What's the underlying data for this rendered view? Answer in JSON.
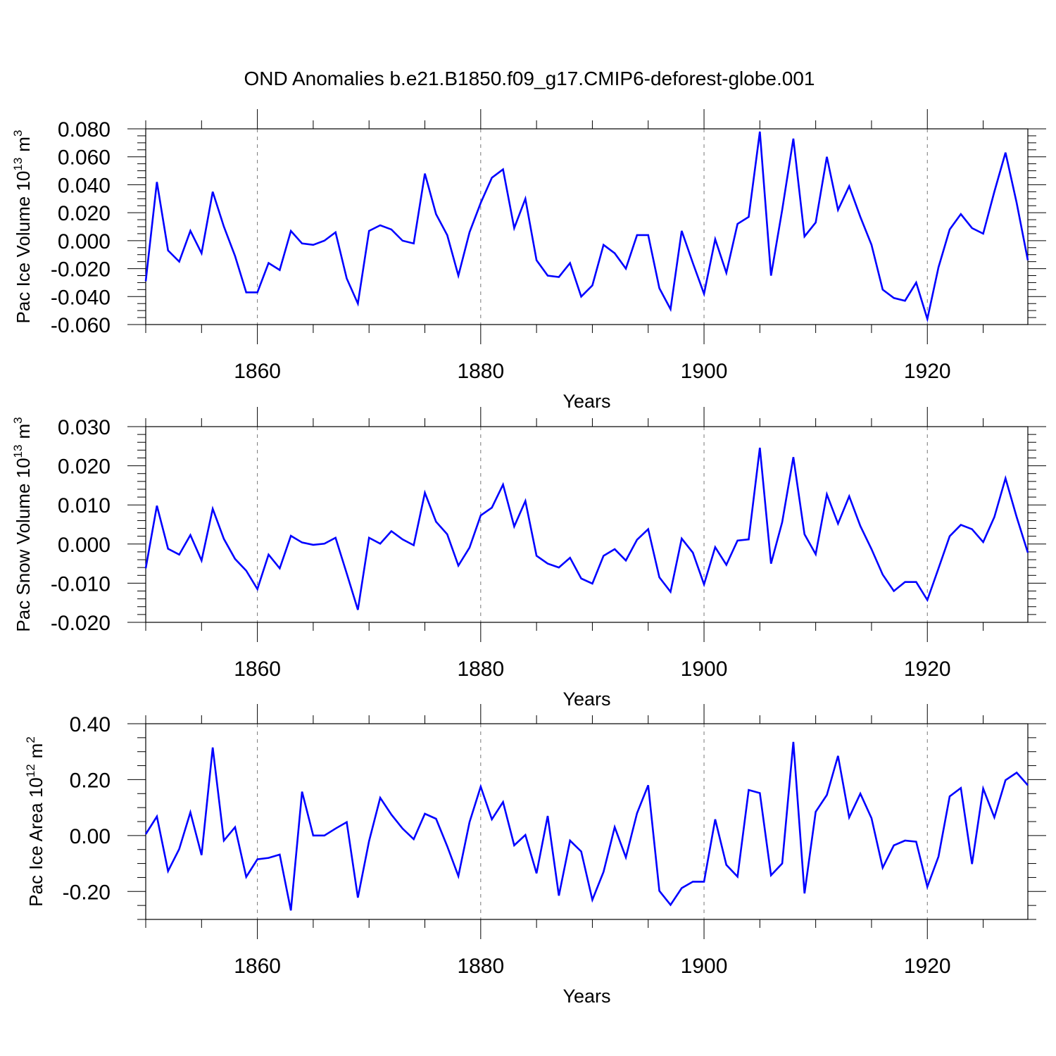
{
  "title": "OND Anomalies b.e21.B1850.f09_g17.CMIP6-deforest-globe.001",
  "series_color": "#0000ff",
  "chart_data": [
    {
      "type": "line",
      "ylabel_main": "Pac Ice Volume 10",
      "ylabel_exp": "13",
      "ylabel_unit": "m",
      "ylabel_unit_exp": "3",
      "xlabel": "Years",
      "xlim": [
        1850,
        1929
      ],
      "ylim": [
        -0.06,
        0.08
      ],
      "y_ticks": [
        -0.06,
        -0.04,
        -0.02,
        0.0,
        0.02,
        0.04,
        0.06,
        0.08
      ],
      "y_tick_labels": [
        "-0.060",
        "-0.040",
        "-0.020",
        "0.000",
        "0.020",
        "0.040",
        "0.060",
        "0.080"
      ],
      "y_minor_step": 0.005,
      "x_ticks": [
        1860,
        1880,
        1900,
        1920
      ],
      "x_tick_labels": [
        "1860",
        "1880",
        "1900",
        "1920"
      ],
      "x_start": 1850,
      "values": [
        -0.029,
        0.042,
        -0.007,
        -0.015,
        0.007,
        -0.009,
        0.035,
        0.01,
        -0.011,
        -0.037,
        -0.037,
        -0.016,
        -0.021,
        0.007,
        -0.002,
        -0.003,
        0.0,
        0.006,
        -0.027,
        -0.045,
        0.007,
        0.011,
        0.008,
        0.0,
        -0.002,
        0.048,
        0.019,
        0.004,
        -0.025,
        0.006,
        0.027,
        0.045,
        0.051,
        0.009,
        0.03,
        -0.014,
        -0.025,
        -0.026,
        -0.016,
        -0.04,
        -0.032,
        -0.003,
        -0.009,
        -0.02,
        0.004,
        0.004,
        -0.034,
        -0.049,
        0.007,
        -0.016,
        -0.038,
        0.001,
        -0.023,
        0.012,
        0.017,
        0.078,
        -0.025,
        0.022,
        0.073,
        0.003,
        0.013,
        0.06,
        0.022,
        0.039,
        0.017,
        -0.003,
        -0.035,
        -0.041,
        -0.043,
        -0.03,
        -0.056,
        -0.019,
        0.008,
        0.019,
        0.009,
        0.005,
        0.035,
        0.063,
        0.027,
        -0.014
      ]
    },
    {
      "type": "line",
      "ylabel_main": "Pac Snow Volume 10",
      "ylabel_exp": "13",
      "ylabel_unit": "m",
      "ylabel_unit_exp": "3",
      "xlabel": "Years",
      "xlim": [
        1850,
        1929
      ],
      "ylim": [
        -0.02,
        0.03
      ],
      "y_ticks": [
        -0.02,
        -0.01,
        0.0,
        0.01,
        0.02,
        0.03
      ],
      "y_tick_labels": [
        "-0.020",
        "-0.010",
        "0.000",
        "0.010",
        "0.020",
        "0.030"
      ],
      "y_minor_step": 0.002,
      "x_ticks": [
        1860,
        1880,
        1900,
        1920
      ],
      "x_tick_labels": [
        "1860",
        "1880",
        "1900",
        "1920"
      ],
      "x_start": 1850,
      "values": [
        -0.0062,
        0.0098,
        -0.0012,
        -0.0027,
        0.0023,
        -0.0042,
        0.009,
        0.0013,
        -0.0038,
        -0.0068,
        -0.0115,
        -0.0027,
        -0.0062,
        0.0021,
        0.0004,
        -0.0002,
        0.0001,
        0.0016,
        -0.0075,
        -0.0168,
        0.0016,
        0.0001,
        0.0033,
        0.0012,
        -0.0003,
        0.0131,
        0.0057,
        0.0025,
        -0.0055,
        -0.0009,
        0.0073,
        0.0093,
        0.0152,
        0.0045,
        0.011,
        -0.003,
        -0.005,
        -0.006,
        -0.0035,
        -0.0088,
        -0.0101,
        -0.003,
        -0.0013,
        -0.0042,
        0.0011,
        0.0038,
        -0.0085,
        -0.0122,
        0.0014,
        -0.0022,
        -0.0103,
        -0.0008,
        -0.0053,
        0.0009,
        0.0012,
        0.0246,
        -0.005,
        0.0056,
        0.0222,
        0.0025,
        -0.0026,
        0.0127,
        0.0052,
        0.0122,
        0.0046,
        -0.0013,
        -0.0078,
        -0.012,
        -0.0097,
        -0.0097,
        -0.0143,
        -0.0062,
        0.002,
        0.0049,
        0.0038,
        0.0005,
        0.0069,
        0.0168,
        0.0069,
        -0.0022
      ]
    },
    {
      "type": "line",
      "ylabel_main": "Pac Ice Area 10",
      "ylabel_exp": "12",
      "ylabel_unit": "m",
      "ylabel_unit_exp": "2",
      "xlabel": "Years",
      "xlim": [
        1850,
        1929
      ],
      "ylim": [
        -0.3,
        0.4
      ],
      "y_ticks": [
        -0.2,
        0.0,
        0.2,
        0.4
      ],
      "y_tick_labels": [
        "-0.20",
        "0.00",
        "0.20",
        "0.40"
      ],
      "y_minor_step": 0.05,
      "x_ticks": [
        1860,
        1880,
        1900,
        1920
      ],
      "x_tick_labels": [
        "1860",
        "1880",
        "1900",
        "1920"
      ],
      "x_start": 1850,
      "values": [
        0.005,
        0.068,
        -0.127,
        -0.048,
        0.083,
        -0.07,
        0.315,
        -0.018,
        0.03,
        -0.148,
        -0.085,
        -0.08,
        -0.068,
        -0.268,
        0.157,
        0.0,
        0.0,
        0.025,
        0.048,
        -0.222,
        -0.02,
        0.135,
        0.075,
        0.025,
        -0.013,
        0.078,
        0.06,
        -0.038,
        -0.145,
        0.048,
        0.175,
        0.058,
        0.12,
        -0.035,
        0.002,
        -0.135,
        0.07,
        -0.215,
        -0.018,
        -0.057,
        -0.23,
        -0.13,
        0.03,
        -0.078,
        0.08,
        0.18,
        -0.198,
        -0.248,
        -0.188,
        -0.165,
        -0.165,
        0.058,
        -0.105,
        -0.147,
        0.163,
        0.152,
        -0.142,
        -0.1,
        0.335,
        -0.207,
        0.085,
        0.145,
        0.285,
        0.065,
        0.15,
        0.062,
        -0.115,
        -0.035,
        -0.018,
        -0.022,
        -0.183,
        -0.075,
        0.14,
        0.17,
        -0.102,
        0.168,
        0.065,
        0.198,
        0.225,
        0.18
      ]
    }
  ]
}
